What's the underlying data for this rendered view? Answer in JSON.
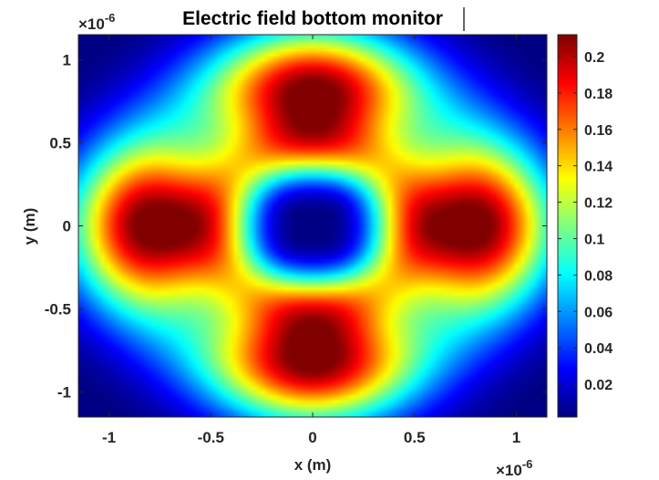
{
  "chart_data": {
    "type": "heatmap",
    "title": "Electric field bottom monitor",
    "xlabel": "x (m)",
    "ylabel": "y (m)",
    "x_exponent_base": "×10",
    "x_exponent_power": "-6",
    "y_exponent_base": "×10",
    "y_exponent_power": "-6",
    "xlim": [
      -1.15,
      1.15
    ],
    "ylim": [
      -1.15,
      1.15
    ],
    "x_ticks": [
      {
        "value": -1,
        "label": "-1"
      },
      {
        "value": -0.5,
        "label": "-0.5"
      },
      {
        "value": 0,
        "label": "0"
      },
      {
        "value": 0.5,
        "label": "0.5"
      },
      {
        "value": 1,
        "label": "1"
      }
    ],
    "y_ticks": [
      {
        "value": 1,
        "label": "1"
      },
      {
        "value": 0.5,
        "label": "0.5"
      },
      {
        "value": 0,
        "label": "0"
      },
      {
        "value": -0.5,
        "label": "-0.5"
      },
      {
        "value": -1,
        "label": "-1"
      }
    ],
    "colorbar": {
      "colormap": "jet",
      "clim": [
        0.002,
        0.212
      ],
      "ticks": [
        {
          "value": 0.02,
          "label": "0.02"
        },
        {
          "value": 0.04,
          "label": "0.04"
        },
        {
          "value": 0.06,
          "label": "0.06"
        },
        {
          "value": 0.08,
          "label": "0.08"
        },
        {
          "value": 0.1,
          "label": "0.1"
        },
        {
          "value": 0.12,
          "label": "0.12"
        },
        {
          "value": 0.14,
          "label": "0.14"
        },
        {
          "value": 0.16,
          "label": "0.16"
        },
        {
          "value": 0.18,
          "label": "0.18"
        },
        {
          "value": 0.2,
          "label": "0.2"
        }
      ]
    },
    "field_features": {
      "center_minimum": {
        "x": 0,
        "y": 0,
        "value": 0.003
      },
      "lobe_maxima": [
        {
          "x": 0.83,
          "y": 0,
          "value": 0.21
        },
        {
          "x": -0.83,
          "y": 0,
          "value": 0.21
        },
        {
          "x": 0,
          "y": 0.83,
          "value": 0.21
        },
        {
          "x": 0,
          "y": -0.83,
          "value": 0.21
        }
      ],
      "diagonal_ring_value": 0.17,
      "corner_value": 0.01
    },
    "grid": false,
    "colors": {
      "axis": "#262626",
      "background": "#ffffff"
    }
  }
}
